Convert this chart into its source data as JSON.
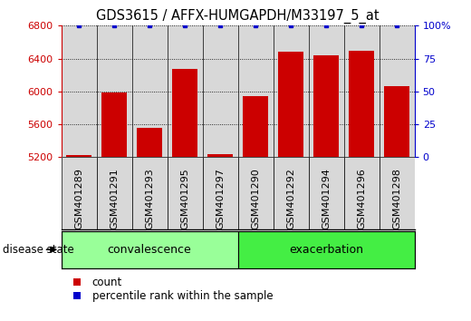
{
  "title": "GDS3615 / AFFX-HUMGAPDH/M33197_5_at",
  "samples": [
    "GSM401289",
    "GSM401291",
    "GSM401293",
    "GSM401295",
    "GSM401297",
    "GSM401290",
    "GSM401292",
    "GSM401294",
    "GSM401296",
    "GSM401298"
  ],
  "counts": [
    5230,
    5990,
    5560,
    6270,
    5240,
    5940,
    6480,
    6440,
    6490,
    6060
  ],
  "percentiles": [
    100,
    100,
    100,
    100,
    100,
    100,
    100,
    100,
    100,
    100
  ],
  "groups": [
    {
      "label": "convalescence",
      "indices": [
        0,
        1,
        2,
        3,
        4
      ],
      "color": "#99ff99"
    },
    {
      "label": "exacerbation",
      "indices": [
        5,
        6,
        7,
        8,
        9
      ],
      "color": "#44ee44"
    }
  ],
  "ylim_left": [
    5200,
    6800
  ],
  "ylim_right": [
    0,
    100
  ],
  "yticks_left": [
    5200,
    5600,
    6000,
    6400,
    6800
  ],
  "yticks_right": [
    0,
    25,
    50,
    75,
    100
  ],
  "bar_color": "#cc0000",
  "dot_color": "#0000cc",
  "bar_width": 0.7,
  "col_bg_color": "#d8d8d8",
  "disease_state_label": "disease state",
  "legend_count_label": "count",
  "legend_percentile_label": "percentile rank within the sample",
  "grid_color": "#000000",
  "title_fontsize": 10.5,
  "tick_fontsize": 8,
  "label_fontsize": 8.5,
  "group_label_fontsize": 9
}
